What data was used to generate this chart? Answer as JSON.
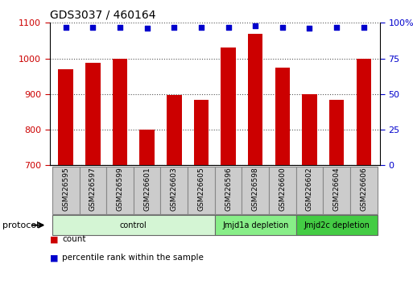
{
  "title": "GDS3037 / 460164",
  "samples": [
    "GSM226595",
    "GSM226597",
    "GSM226599",
    "GSM226601",
    "GSM226603",
    "GSM226605",
    "GSM226596",
    "GSM226598",
    "GSM226600",
    "GSM226602",
    "GSM226604",
    "GSM226606"
  ],
  "counts": [
    970,
    988,
    998,
    800,
    898,
    884,
    1030,
    1068,
    974,
    900,
    884,
    1000
  ],
  "percentile_ranks": [
    97,
    97,
    97,
    96,
    97,
    97,
    97,
    98,
    97,
    96,
    97,
    97
  ],
  "bar_color": "#cc0000",
  "dot_color": "#0000cc",
  "ylim_left": [
    700,
    1100
  ],
  "ylim_right": [
    0,
    100
  ],
  "yticks_left": [
    700,
    800,
    900,
    1000,
    1100
  ],
  "yticks_right": [
    0,
    25,
    50,
    75,
    100
  ],
  "ytick_right_labels": [
    "0",
    "25",
    "50",
    "75",
    "100%"
  ],
  "groups": [
    {
      "label": "control",
      "start": 0,
      "end": 6,
      "color": "#d4f5d4",
      "border_color": "#666666"
    },
    {
      "label": "Jmjd1a depletion",
      "start": 6,
      "end": 9,
      "color": "#88ee88",
      "border_color": "#666666"
    },
    {
      "label": "Jmjd2c depletion",
      "start": 9,
      "end": 12,
      "color": "#44cc44",
      "border_color": "#666666"
    }
  ],
  "legend_items": [
    {
      "label": "count",
      "color": "#cc0000"
    },
    {
      "label": "percentile rank within the sample",
      "color": "#0000cc"
    }
  ],
  "protocol_label": "protocol",
  "background_color": "#ffffff",
  "grid_color": "#555555",
  "tick_label_color_left": "#cc0000",
  "tick_label_color_right": "#0000cc",
  "sample_box_color": "#cccccc",
  "sample_box_edge": "#888888"
}
